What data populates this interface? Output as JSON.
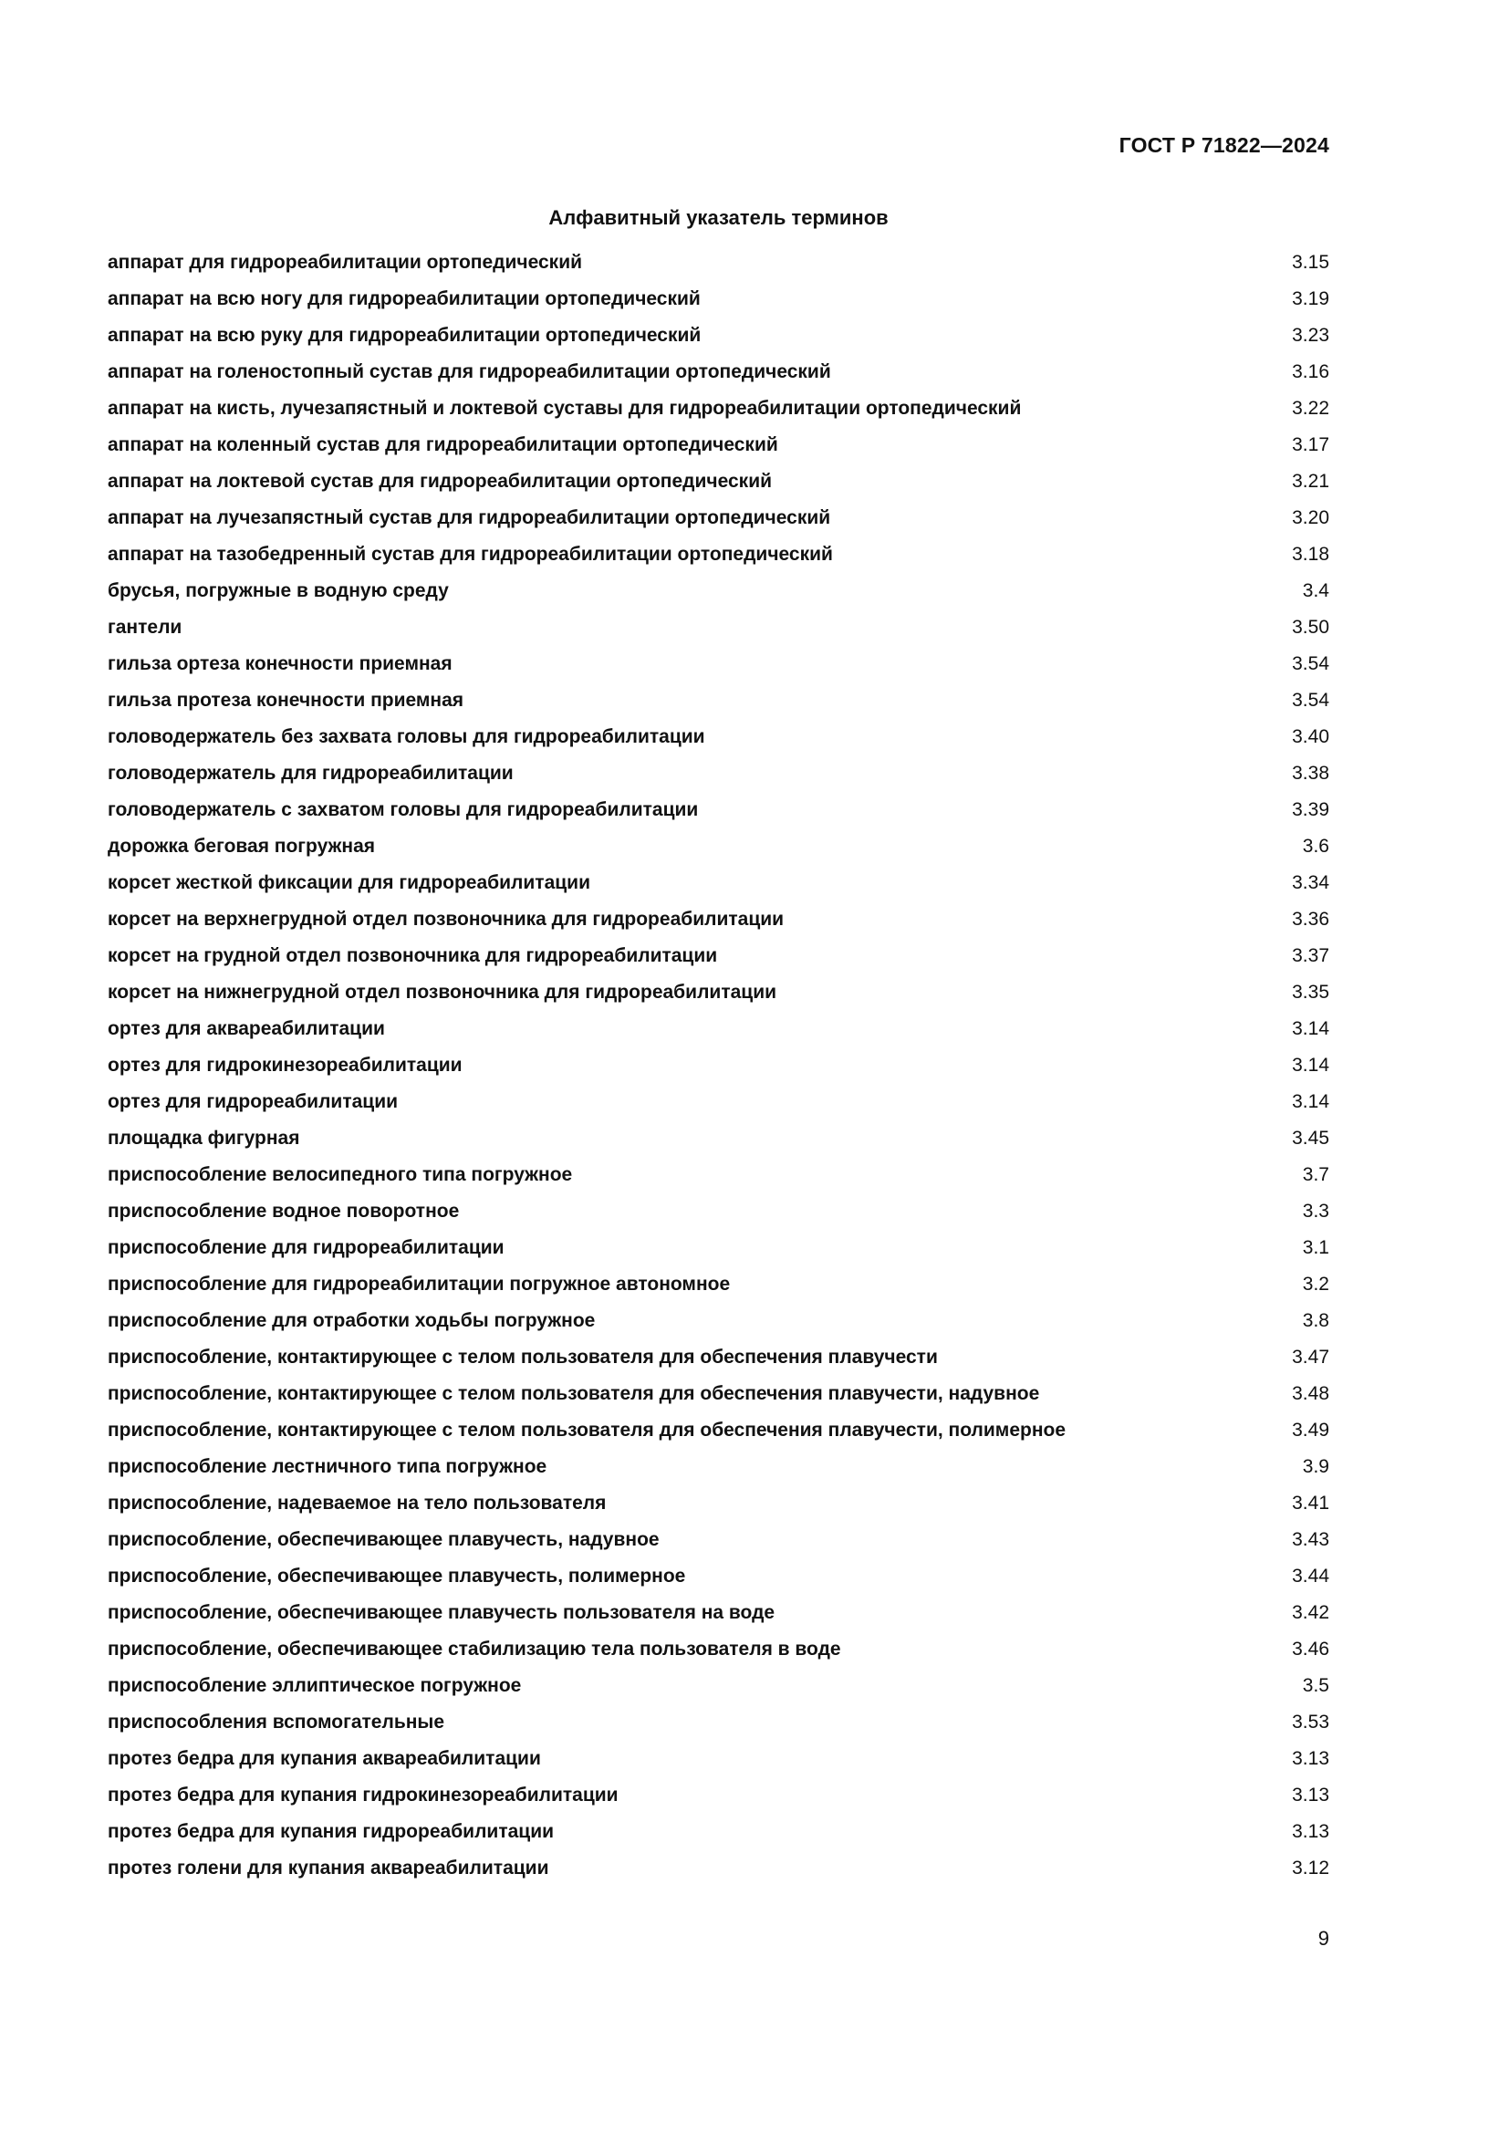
{
  "page": {
    "doc_code": "ГОСТ Р 71822—2024",
    "title": "Алфавитный указатель терминов",
    "page_number": "9",
    "text_color": "#111111",
    "background_color": "#ffffff"
  },
  "index": {
    "entries": [
      {
        "term": "аппарат для гидрореабилитации ортопедический",
        "ref": "3.15"
      },
      {
        "term": "аппарат на всю ногу для гидрореабилитации ортопедический",
        "ref": "3.19"
      },
      {
        "term": "аппарат на всю руку для гидрореабилитации ортопедический",
        "ref": "3.23"
      },
      {
        "term": "аппарат на голеностопный сустав для гидрореабилитации ортопедический",
        "ref": "3.16"
      },
      {
        "term": "аппарат на кисть, лучезапястный и локтевой суставы для гидрореабилитации ортопедический",
        "ref": "3.22"
      },
      {
        "term": "аппарат на коленный сустав для гидрореабилитации ортопедический",
        "ref": "3.17"
      },
      {
        "term": "аппарат на локтевой сустав для гидрореабилитации ортопедический",
        "ref": "3.21"
      },
      {
        "term": "аппарат на лучезапястный сустав для гидрореабилитации ортопедический",
        "ref": "3.20"
      },
      {
        "term": "аппарат на тазобедренный сустав для гидрореабилитации ортопедический",
        "ref": "3.18"
      },
      {
        "term": "брусья, погружные в водную среду",
        "ref": "3.4"
      },
      {
        "term": "гантели",
        "ref": "3.50"
      },
      {
        "term": "гильза ортеза конечности приемная",
        "ref": "3.54"
      },
      {
        "term": "гильза протеза конечности приемная",
        "ref": "3.54"
      },
      {
        "term": "головодержатель без захвата головы для гидрореабилитации",
        "ref": "3.40"
      },
      {
        "term": "головодержатель для гидрореабилитации",
        "ref": "3.38"
      },
      {
        "term": "головодержатель с захватом головы для гидрореабилитации",
        "ref": "3.39"
      },
      {
        "term": "дорожка беговая погружная",
        "ref": "3.6"
      },
      {
        "term": "корсет жесткой фиксации для гидрореабилитации",
        "ref": "3.34"
      },
      {
        "term": "корсет на верхнегрудной отдел позвоночника для гидрореабилитации",
        "ref": "3.36"
      },
      {
        "term": "корсет на грудной отдел позвоночника для гидрореабилитации",
        "ref": "3.37"
      },
      {
        "term": "корсет на нижнегрудной отдел позвоночника для гидрореабилитации",
        "ref": "3.35"
      },
      {
        "term": "ортез для аквареабилитации",
        "ref": "3.14"
      },
      {
        "term": "ортез для гидрокинезореабилитации",
        "ref": "3.14"
      },
      {
        "term": "ортез для гидрореабилитации",
        "ref": "3.14"
      },
      {
        "term": "площадка фигурная",
        "ref": "3.45"
      },
      {
        "term": "приспособление велосипедного типа погружное",
        "ref": "3.7"
      },
      {
        "term": "приспособление водное поворотное",
        "ref": "3.3"
      },
      {
        "term": "приспособление для гидрореабилитации",
        "ref": "3.1"
      },
      {
        "term": "приспособление для гидрореабилитации погружное автономное",
        "ref": "3.2"
      },
      {
        "term": "приспособление для отработки ходьбы погружное",
        "ref": "3.8"
      },
      {
        "term": "приспособление, контактирующее с телом пользователя для обеспечения плавучести",
        "ref": "3.47"
      },
      {
        "term": "приспособление, контактирующее с телом пользователя для обеспечения плавучести, надувное",
        "ref": "3.48"
      },
      {
        "term": "приспособление, контактирующее с телом пользователя для обеспечения плавучести, полимерное",
        "ref": "3.49"
      },
      {
        "term": "приспособление лестничного типа погружное",
        "ref": "3.9"
      },
      {
        "term": "приспособление, надеваемое на тело пользователя",
        "ref": "3.41"
      },
      {
        "term": "приспособление, обеспечивающее плавучесть, надувное",
        "ref": "3.43"
      },
      {
        "term": "приспособление, обеспечивающее плавучесть, полимерное",
        "ref": "3.44"
      },
      {
        "term": "приспособление, обеспечивающее плавучесть пользователя на воде",
        "ref": "3.42"
      },
      {
        "term": "приспособление, обеспечивающее стабилизацию тела пользователя в воде",
        "ref": "3.46"
      },
      {
        "term": "приспособление эллиптическое погружное",
        "ref": "3.5"
      },
      {
        "term": "приспособления вспомогательные",
        "ref": "3.53"
      },
      {
        "term": "протез бедра для купания аквареабилитации",
        "ref": "3.13"
      },
      {
        "term": "протез бедра для купания гидрокинезореабилитации",
        "ref": "3.13"
      },
      {
        "term": "протез бедра для купания гидрореабилитации",
        "ref": "3.13"
      },
      {
        "term": "протез голени для купания аквареабилитации",
        "ref": "3.12"
      }
    ]
  }
}
